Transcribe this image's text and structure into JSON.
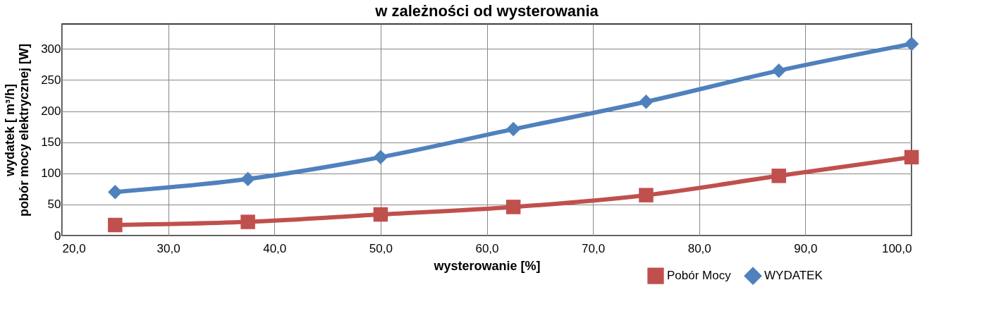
{
  "chart_data": {
    "type": "line",
    "title": "w zależności od wysterowania",
    "xlabel": "wysterowanie  [%]",
    "ylabel": "wydatek  [ m³/h]\npobór  mocy  elektrycznej  [W]",
    "x": [
      25,
      37.5,
      50,
      62.5,
      75,
      87.5,
      100
    ],
    "xlim": [
      20,
      100
    ],
    "xticks": [
      {
        "value": 20,
        "label": "20,0"
      },
      {
        "value": 30,
        "label": "30,0"
      },
      {
        "value": 40,
        "label": "40,0"
      },
      {
        "value": 50,
        "label": "50,0"
      },
      {
        "value": 60,
        "label": "60,0"
      },
      {
        "value": 70,
        "label": "70,0"
      },
      {
        "value": 80,
        "label": "80,0"
      },
      {
        "value": 90,
        "label": "90,0"
      },
      {
        "value": 100,
        "label": "100,0"
      }
    ],
    "ylim": [
      0,
      340
    ],
    "yticks": [
      0,
      50,
      100,
      150,
      200,
      250,
      300
    ],
    "series": [
      {
        "name": "Pobór Mocy",
        "color": "#c0504d",
        "marker": "square",
        "values": [
          17,
          22,
          34,
          46,
          65,
          96,
          126
        ]
      },
      {
        "name": "WYDATEK",
        "color": "#4f81bd",
        "marker": "diamond",
        "values": [
          70,
          91,
          126,
          171,
          215,
          265,
          308
        ]
      }
    ],
    "grid": true,
    "legend": "bottom right",
    "line_style": "solid"
  }
}
